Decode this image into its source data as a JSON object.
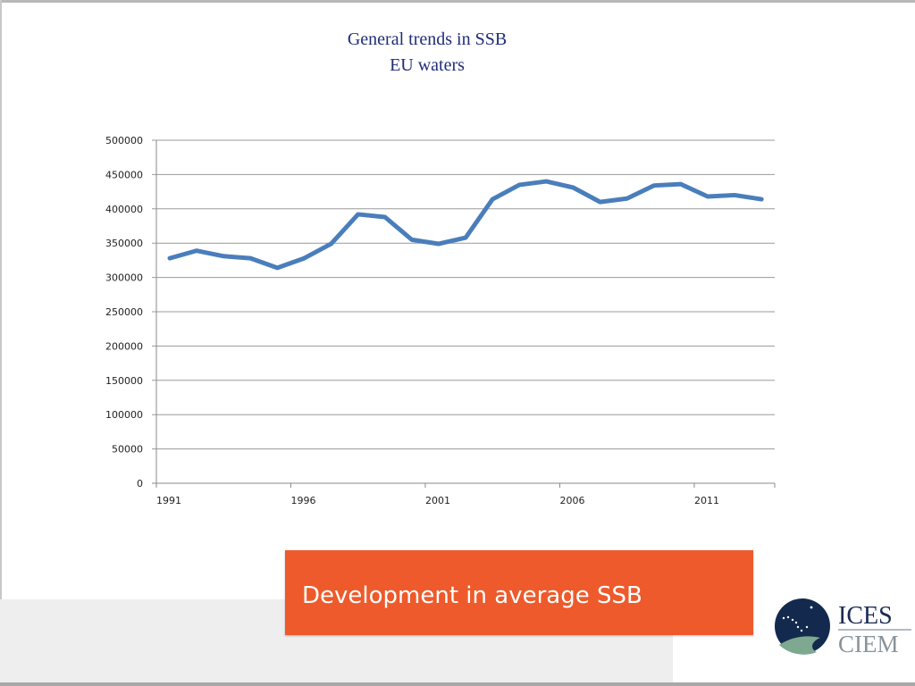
{
  "slide": {
    "banner_text": "Development in average SSB",
    "logo": {
      "line1": "ICES",
      "line2": "CIEM",
      "icon": "ices-logo-icon"
    }
  },
  "colors": {
    "line": "#4a7ebb",
    "banner": "#ee5a2b",
    "title": "#1f2d7a"
  },
  "chart_data": {
    "type": "line",
    "title": "General trends in SSB",
    "subtitle": "EU waters",
    "xlabel": "",
    "ylabel": "",
    "ylim": [
      0,
      500000
    ],
    "yticks": [
      0,
      50000,
      100000,
      150000,
      200000,
      250000,
      300000,
      350000,
      400000,
      450000,
      500000
    ],
    "xtick_labels": [
      "1991",
      "1996",
      "2001",
      "2006",
      "2011"
    ],
    "grid": true,
    "legend": "none",
    "x": [
      1991,
      1992,
      1993,
      1994,
      1995,
      1996,
      1997,
      1998,
      1999,
      2000,
      2001,
      2002,
      2003,
      2004,
      2005,
      2006,
      2007,
      2008,
      2009,
      2010,
      2011,
      2012,
      2013
    ],
    "series": [
      {
        "name": "SSB",
        "values": [
          328000,
          339000,
          331000,
          328000,
          314000,
          328000,
          349000,
          392000,
          388000,
          355000,
          349000,
          358000,
          414000,
          435000,
          440000,
          431000,
          410000,
          415000,
          434000,
          436000,
          418000,
          420000,
          414000
        ]
      }
    ]
  }
}
